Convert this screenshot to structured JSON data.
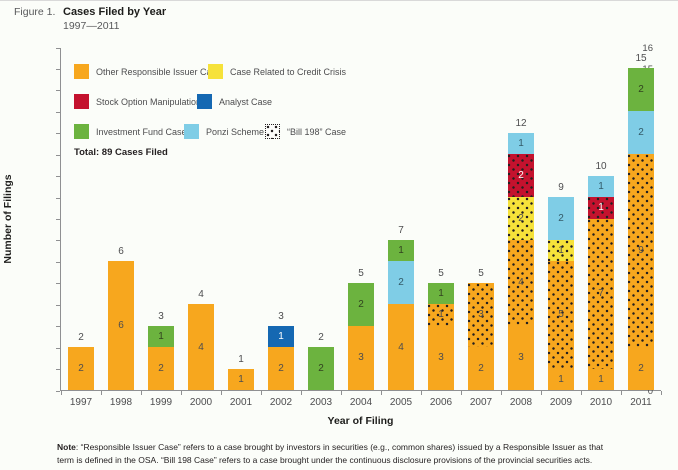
{
  "figure": {
    "label": "Figure 1.",
    "title": "Cases Filed by Year",
    "subtitle": "1997—2011"
  },
  "legend": {
    "items": [
      {
        "label": "Other Responsible Issuer Case",
        "color": "#F7A71E",
        "value_text": "#4d4d4f"
      },
      {
        "label": "Case Related to Credit Crisis",
        "color": "#F6E23A",
        "value_text": "#4d4d4f"
      },
      {
        "label": "Stock Option Manipulation",
        "color": "#C4122E",
        "value_text": "#ffffff"
      },
      {
        "label": "Analyst Case",
        "color": "#1568B2",
        "value_text": "#ffffff"
      },
      {
        "label": "Investment Fund Case",
        "color": "#6CB33F",
        "value_text": "#31431f"
      },
      {
        "label": "Ponzi Scheme",
        "color": "#7FCDE6",
        "value_text": "#335a68"
      },
      {
        "label": "“Bill 198” Case",
        "color": "#FDFDFB",
        "value_text": "#4d4d4f",
        "dotted": true
      }
    ],
    "total": "Total: 89 Cases Filed"
  },
  "chart_data": {
    "type": "bar",
    "stacked": true,
    "title": "Cases Filed by Year 1997—2011",
    "xlabel": "Year of Filing",
    "ylabel": "Number of Filings",
    "ylim": [
      0,
      16
    ],
    "ytick_step": 1,
    "grid": false,
    "legend_position": "top-left inside plot",
    "dotted_overlay_meaning": "“Bill 198” Case",
    "categories": [
      "1997",
      "1998",
      "1999",
      "2000",
      "2001",
      "2002",
      "2003",
      "2004",
      "2005",
      "2006",
      "2007",
      "2008",
      "2009",
      "2010",
      "2011"
    ],
    "totals": [
      2,
      6,
      3,
      4,
      1,
      3,
      2,
      5,
      7,
      5,
      5,
      12,
      9,
      10,
      15
    ],
    "series_names": [
      "Other Responsible Issuer Case",
      "Case Related to Credit Crisis",
      "Stock Option Manipulation",
      "Analyst Case",
      "Investment Fund Case",
      "Ponzi Scheme"
    ],
    "bars": [
      {
        "year": "1997",
        "total": 2,
        "segments": [
          {
            "series": 0,
            "value": 2,
            "dotted": false
          }
        ]
      },
      {
        "year": "1998",
        "total": 6,
        "segments": [
          {
            "series": 0,
            "value": 6,
            "dotted": false
          }
        ]
      },
      {
        "year": "1999",
        "total": 3,
        "segments": [
          {
            "series": 0,
            "value": 2,
            "dotted": false
          },
          {
            "series": 4,
            "value": 1,
            "dotted": false
          }
        ]
      },
      {
        "year": "2000",
        "total": 4,
        "segments": [
          {
            "series": 0,
            "value": 4,
            "dotted": false
          }
        ]
      },
      {
        "year": "2001",
        "total": 1,
        "segments": [
          {
            "series": 0,
            "value": 1,
            "dotted": false
          }
        ]
      },
      {
        "year": "2002",
        "total": 3,
        "segments": [
          {
            "series": 0,
            "value": 2,
            "dotted": false
          },
          {
            "series": 3,
            "value": 1,
            "dotted": false
          }
        ]
      },
      {
        "year": "2003",
        "total": 2,
        "segments": [
          {
            "series": 4,
            "value": 2,
            "dotted": false
          }
        ]
      },
      {
        "year": "2004",
        "total": 5,
        "segments": [
          {
            "series": 0,
            "value": 3,
            "dotted": false
          },
          {
            "series": 4,
            "value": 2,
            "dotted": false
          }
        ]
      },
      {
        "year": "2005",
        "total": 7,
        "segments": [
          {
            "series": 0,
            "value": 4,
            "dotted": false
          },
          {
            "series": 5,
            "value": 2,
            "dotted": false
          },
          {
            "series": 4,
            "value": 1,
            "dotted": false
          }
        ]
      },
      {
        "year": "2006",
        "total": 5,
        "segments": [
          {
            "series": 0,
            "value": 3,
            "dotted": false
          },
          {
            "series": 0,
            "value": 1,
            "dotted": true
          },
          {
            "series": 4,
            "value": 1,
            "dotted": false
          }
        ]
      },
      {
        "year": "2007",
        "total": 5,
        "segments": [
          {
            "series": 0,
            "value": 2,
            "dotted": false
          },
          {
            "series": 0,
            "value": 3,
            "dotted": true
          }
        ]
      },
      {
        "year": "2008",
        "total": 12,
        "segments": [
          {
            "series": 0,
            "value": 3,
            "dotted": false
          },
          {
            "series": 0,
            "value": 4,
            "dotted": true
          },
          {
            "series": 1,
            "value": 2,
            "dotted": true
          },
          {
            "series": 2,
            "value": 2,
            "dotted": true
          },
          {
            "series": 5,
            "value": 1,
            "dotted": false
          }
        ]
      },
      {
        "year": "2009",
        "total": 9,
        "segments": [
          {
            "series": 0,
            "value": 1,
            "dotted": false
          },
          {
            "series": 0,
            "value": 5,
            "dotted": true
          },
          {
            "series": 1,
            "value": 1,
            "dotted": true
          },
          {
            "series": 5,
            "value": 2,
            "dotted": false
          }
        ]
      },
      {
        "year": "2010",
        "total": 10,
        "segments": [
          {
            "series": 0,
            "value": 1,
            "dotted": false
          },
          {
            "series": 0,
            "value": 7,
            "dotted": true
          },
          {
            "series": 2,
            "value": 1,
            "dotted": true
          },
          {
            "series": 5,
            "value": 1,
            "dotted": false
          }
        ]
      },
      {
        "year": "2011",
        "total": 15,
        "segments": [
          {
            "series": 0,
            "value": 2,
            "dotted": false
          },
          {
            "series": 0,
            "value": 9,
            "dotted": true
          },
          {
            "series": 5,
            "value": 2,
            "dotted": false
          },
          {
            "series": 4,
            "value": 2,
            "dotted": false
          }
        ]
      }
    ]
  },
  "note": {
    "label": "Note",
    "text": ": “Responsible Issuer Case” refers to a case brought by investors in securities (e.g., common shares) issued by a Responsible Issuer as that term is defined in the OSA. “Bill 198 Case” refers to a case brought under the continuous disclosure provisions of the provincial securities acts."
  }
}
